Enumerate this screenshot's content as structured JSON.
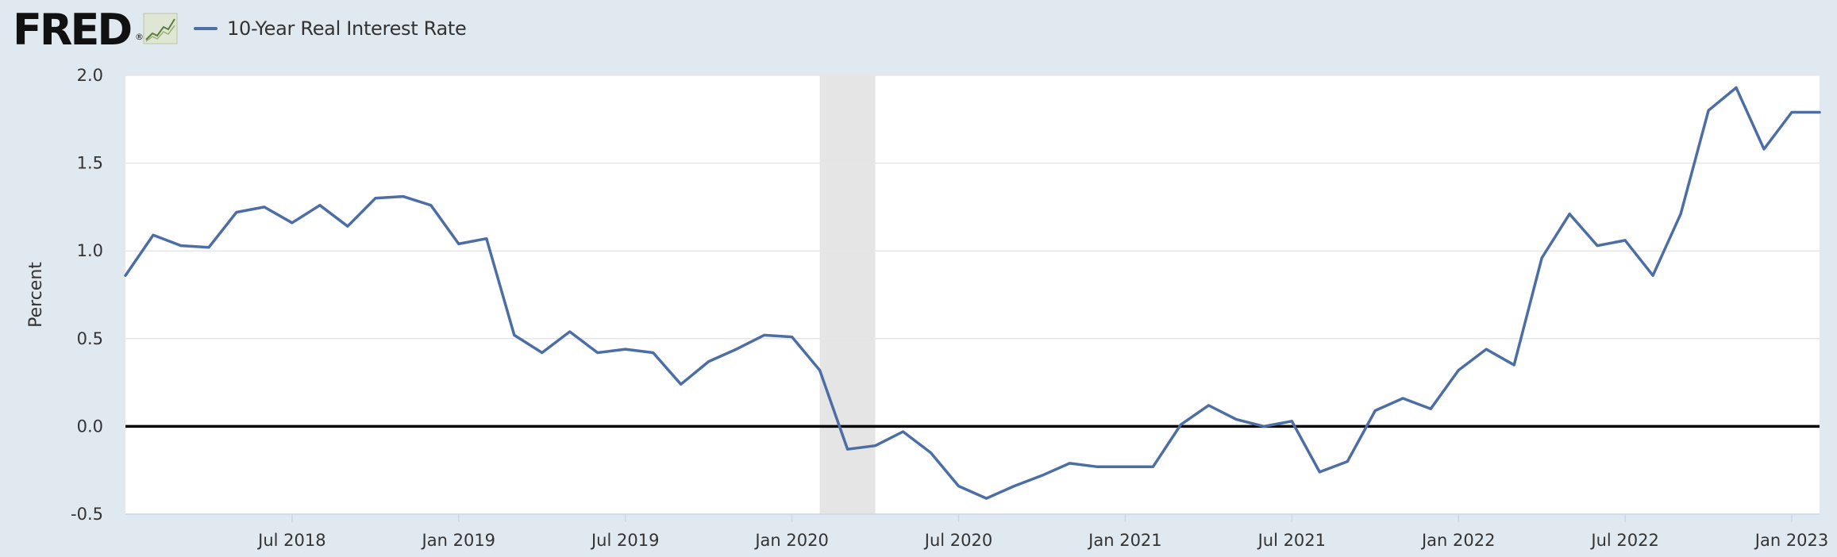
{
  "brand": {
    "logo_text": "FRED",
    "registered_mark": "®"
  },
  "legend": {
    "series_label": "10-Year Real Interest Rate"
  },
  "colors": {
    "line": "#4c6ea4",
    "zero_line": "#000000",
    "recession": "#e5e5e5",
    "plot_bg": "#ffffff",
    "page_bg": "#e1e9f0"
  },
  "icons": {
    "logo_graph": "trend-line-graph-icon"
  },
  "chart_data": {
    "type": "line",
    "title": "",
    "xlabel": "",
    "ylabel": "Percent",
    "ylim": [
      -0.5,
      2.0
    ],
    "yticks": [
      2.0,
      1.5,
      1.0,
      0.5,
      0.0,
      -0.5
    ],
    "ytick_labels": [
      "2.0",
      "1.5",
      "1.0",
      "0.5",
      "0.0",
      "-0.5"
    ],
    "xlim": [
      "2018-01-01",
      "2023-02-01"
    ],
    "xticks": [
      "2018-07-01",
      "2019-01-01",
      "2019-07-01",
      "2020-01-01",
      "2020-07-01",
      "2021-01-01",
      "2021-07-01",
      "2022-01-01",
      "2022-07-01",
      "2023-01-01"
    ],
    "xtick_labels": [
      "Jul 2018",
      "Jan 2019",
      "Jul 2019",
      "Jan 2020",
      "Jul 2020",
      "Jan 2021",
      "Jul 2021",
      "Jan 2022",
      "Jul 2022",
      "Jan 2023"
    ],
    "grid": true,
    "zero_line": true,
    "recession": {
      "start": "2020-02-01",
      "end": "2020-04-01"
    },
    "series": [
      {
        "name": "10-Year Real Interest Rate",
        "x": [
          "2018-01-01",
          "2018-02-01",
          "2018-03-01",
          "2018-04-01",
          "2018-05-01",
          "2018-06-01",
          "2018-07-01",
          "2018-08-01",
          "2018-09-01",
          "2018-10-01",
          "2018-11-01",
          "2018-12-01",
          "2019-01-01",
          "2019-02-01",
          "2019-03-01",
          "2019-04-01",
          "2019-05-01",
          "2019-06-01",
          "2019-07-01",
          "2019-08-01",
          "2019-09-01",
          "2019-10-01",
          "2019-11-01",
          "2019-12-01",
          "2020-01-01",
          "2020-02-01",
          "2020-03-01",
          "2020-04-01",
          "2020-05-01",
          "2020-06-01",
          "2020-07-01",
          "2020-08-01",
          "2020-09-01",
          "2020-10-01",
          "2020-11-01",
          "2020-12-01",
          "2021-01-01",
          "2021-02-01",
          "2021-03-01",
          "2021-04-01",
          "2021-05-01",
          "2021-06-01",
          "2021-07-01",
          "2021-08-01",
          "2021-09-01",
          "2021-10-01",
          "2021-11-01",
          "2021-12-01",
          "2022-01-01",
          "2022-02-01",
          "2022-03-01",
          "2022-04-01",
          "2022-05-01",
          "2022-06-01",
          "2022-07-01",
          "2022-08-01",
          "2022-09-01",
          "2022-10-01",
          "2022-11-01",
          "2022-12-01",
          "2023-01-01",
          "2023-02-01"
        ],
        "values": [
          0.86,
          1.09,
          1.03,
          1.02,
          1.22,
          1.25,
          1.16,
          1.26,
          1.14,
          1.3,
          1.31,
          1.26,
          1.04,
          1.07,
          0.52,
          0.42,
          0.54,
          0.42,
          0.44,
          0.42,
          0.24,
          0.37,
          0.44,
          0.52,
          0.51,
          0.32,
          -0.13,
          -0.11,
          -0.03,
          -0.15,
          -0.34,
          -0.41,
          -0.34,
          -0.28,
          -0.21,
          -0.23,
          -0.23,
          -0.23,
          0.01,
          0.12,
          0.04,
          0.0,
          0.03,
          -0.26,
          -0.2,
          0.09,
          0.16,
          0.1,
          0.32,
          0.44,
          0.35,
          0.96,
          1.21,
          1.03,
          1.06,
          0.86,
          1.21,
          1.8,
          1.93,
          1.58,
          1.79,
          1.79
        ]
      }
    ]
  }
}
